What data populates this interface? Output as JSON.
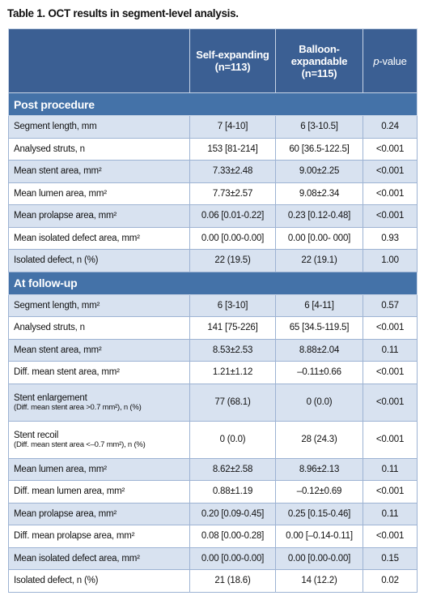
{
  "header": {
    "title": "Table 1. OCT results in segment-level analysis."
  },
  "table": {
    "columns": [
      [
        "Self-expanding",
        "(n=113)"
      ],
      [
        "Balloon-",
        "expandable",
        "(n=115)"
      ],
      {
        "italic": "p",
        "rest": "-value"
      }
    ],
    "sections": [
      {
        "title": "Post procedure",
        "rows": [
          [
            [
              "Segment length, mm"
            ],
            "7 [4-10]",
            "6 [3-10.5]",
            "0.24"
          ],
          [
            [
              "Analysed struts, n"
            ],
            "153 [81-214]",
            "60 [36.5-122.5]",
            "<0.001"
          ],
          [
            [
              "Mean stent area, mm²"
            ],
            "7.33±2.48",
            "9.00±2.25",
            "<0.001"
          ],
          [
            [
              "Mean lumen area, mm²"
            ],
            "7.73±2.57",
            "9.08±2.34",
            "<0.001"
          ],
          [
            [
              "Mean prolapse area, mm²"
            ],
            "0.06 [0.01-0.22]",
            "0.23 [0.12-0.48]",
            "<0.001"
          ],
          [
            [
              "Mean isolated defect area, mm²"
            ],
            "0.00 [0.00-0.00]",
            "0.00 [0.00- 000]",
            "0.93"
          ],
          [
            [
              "Isolated defect, n (%)"
            ],
            "22 (19.5)",
            "22 (19.1)",
            "1.00"
          ]
        ]
      },
      {
        "title": "At follow-up",
        "rows": [
          [
            [
              "Segment length, mm²"
            ],
            "6 [3-10]",
            "6 [4-11]",
            "0.57"
          ],
          [
            [
              "Analysed struts, n"
            ],
            "141 [75-226]",
            "65 [34.5-119.5]",
            "<0.001"
          ],
          [
            [
              "Mean stent area, mm²"
            ],
            "8.53±2.53",
            "8.88±2.04",
            "0.11"
          ],
          [
            [
              "Diff. mean stent area, mm²"
            ],
            "1.21±1.12",
            "–0.11±0.66",
            "<0.001"
          ],
          [
            [
              "Stent enlargement",
              "(Diff. mean stent area >0.7 mm²), n (%)"
            ],
            "77 (68.1)",
            "0 (0.0)",
            "<0.001"
          ],
          [
            [
              "Stent recoil",
              "(Diff. mean stent area <–0.7 mm²), n (%)"
            ],
            "0 (0.0)",
            "28 (24.3)",
            "<0.001"
          ],
          [
            [
              "Mean lumen area, mm²"
            ],
            "8.62±2.58",
            "8.96±2.13",
            "0.11"
          ],
          [
            [
              "Diff. mean lumen area, mm²"
            ],
            "0.88±1.19",
            "–0.12±0.69",
            "<0.001"
          ],
          [
            [
              "Mean prolapse area, mm²"
            ],
            "0.20 [0.09-0.45]",
            "0.25 [0.15-0.46]",
            "0.11"
          ],
          [
            [
              "Diff. mean prolapse area, mm²"
            ],
            "0.08 [0.00-0.28]",
            "0.00 [–0.14-0.11]",
            "<0.001"
          ],
          [
            [
              "Mean isolated defect area, mm²"
            ],
            "0.00 [0.00-0.00]",
            "0.00 [0.00-0.00]",
            "0.15"
          ],
          [
            [
              "Isolated defect, n (%)"
            ],
            "21 (18.6)",
            "14 (12.2)",
            "0.02"
          ]
        ]
      }
    ]
  }
}
